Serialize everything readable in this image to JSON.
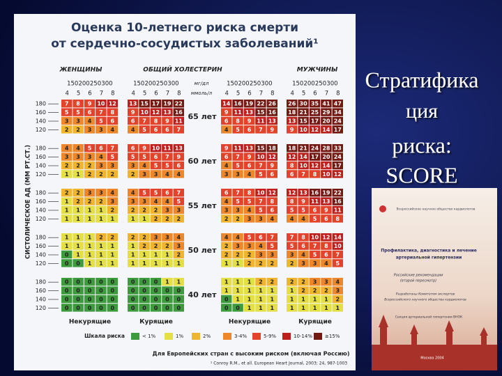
{
  "header": {
    "title_line1": "Оценка 10-летнего риска смерти",
    "title_line2": "от сердечно-сосудистых заболеваний¹"
  },
  "groups": {
    "women": "ЖЕНЩИНЫ",
    "cholesterol": "ОБЩИЙ ХОЛЕСТЕРИН",
    "men": "МУЖЧИНЫ"
  },
  "mgdl": [
    "150",
    "200",
    "250",
    "300"
  ],
  "mgdl_unit": "мг/дл",
  "mmol_unit": "ммоль/л",
  "chol": [
    "4",
    "5",
    "6",
    "7",
    "8"
  ],
  "bp": [
    "180",
    "160",
    "140",
    "120"
  ],
  "y_label": "СИСТОЛИЧЕСКОЕ АД (ММ РТ.СТ.)",
  "ages": [
    {
      "label": "65 лет",
      "panels": [
        [
          [
            7,
            8,
            9,
            10,
            12
          ],
          [
            5,
            5,
            6,
            7,
            8
          ],
          [
            3,
            3,
            4,
            5,
            6
          ],
          [
            2,
            2,
            3,
            3,
            4
          ]
        ],
        [
          [
            13,
            15,
            17,
            19,
            22
          ],
          [
            9,
            10,
            12,
            13,
            16
          ],
          [
            6,
            7,
            8,
            9,
            11
          ],
          [
            4,
            5,
            6,
            6,
            7
          ]
        ],
        [
          [
            14,
            16,
            19,
            22,
            26
          ],
          [
            9,
            11,
            13,
            15,
            16
          ],
          [
            6,
            8,
            9,
            11,
            13
          ],
          [
            4,
            5,
            6,
            7,
            9
          ]
        ],
        [
          [
            26,
            30,
            35,
            41,
            47
          ],
          [
            18,
            21,
            25,
            29,
            34
          ],
          [
            13,
            15,
            17,
            20,
            24
          ],
          [
            9,
            10,
            12,
            14,
            17
          ]
        ]
      ]
    },
    {
      "label": "60 лет",
      "panels": [
        [
          [
            4,
            4,
            5,
            6,
            7
          ],
          [
            3,
            3,
            3,
            4,
            5
          ],
          [
            2,
            2,
            2,
            3,
            3
          ],
          [
            1,
            1,
            2,
            2,
            2
          ]
        ],
        [
          [
            6,
            9,
            10,
            11,
            13
          ],
          [
            5,
            5,
            6,
            7,
            9
          ],
          [
            3,
            4,
            5,
            5,
            6
          ],
          [
            2,
            3,
            3,
            4,
            4
          ]
        ],
        [
          [
            9,
            11,
            13,
            15,
            18
          ],
          [
            6,
            7,
            9,
            10,
            12
          ],
          [
            4,
            5,
            6,
            7,
            9
          ],
          [
            3,
            3,
            4,
            5,
            6
          ]
        ],
        [
          [
            18,
            21,
            24,
            28,
            33
          ],
          [
            12,
            14,
            17,
            20,
            24
          ],
          [
            8,
            10,
            12,
            14,
            17
          ],
          [
            6,
            7,
            8,
            10,
            12
          ]
        ]
      ]
    },
    {
      "label": "55 лет",
      "panels": [
        [
          [
            2,
            2,
            3,
            3,
            4
          ],
          [
            1,
            2,
            2,
            2,
            3
          ],
          [
            1,
            1,
            1,
            1,
            2
          ],
          [
            1,
            1,
            1,
            1,
            1
          ]
        ],
        [
          [
            4,
            5,
            5,
            6,
            7
          ],
          [
            3,
            3,
            4,
            4,
            5
          ],
          [
            2,
            2,
            2,
            3,
            3
          ],
          [
            1,
            1,
            2,
            2,
            2
          ]
        ],
        [
          [
            6,
            7,
            8,
            10,
            12
          ],
          [
            4,
            5,
            5,
            7,
            8
          ],
          [
            3,
            3,
            4,
            5,
            6
          ],
          [
            2,
            2,
            3,
            3,
            4
          ]
        ],
        [
          [
            12,
            13,
            16,
            19,
            22
          ],
          [
            8,
            9,
            11,
            13,
            16
          ],
          [
            5,
            5,
            6,
            9,
            11
          ],
          [
            4,
            4,
            5,
            6,
            8
          ]
        ]
      ]
    },
    {
      "label": "50 лет",
      "panels": [
        [
          [
            1,
            1,
            1,
            2,
            2
          ],
          [
            1,
            1,
            1,
            1,
            1
          ],
          [
            0,
            1,
            1,
            1,
            1
          ],
          [
            0,
            0,
            1,
            1,
            1
          ]
        ],
        [
          [
            2,
            2,
            3,
            3,
            4
          ],
          [
            1,
            2,
            2,
            2,
            3
          ],
          [
            1,
            1,
            1,
            1,
            2
          ],
          [
            1,
            1,
            1,
            1,
            1
          ]
        ],
        [
          [
            4,
            4,
            5,
            6,
            7
          ],
          [
            2,
            3,
            3,
            4,
            5
          ],
          [
            2,
            2,
            2,
            3,
            3
          ],
          [
            1,
            1,
            2,
            2,
            2
          ]
        ],
        [
          [
            7,
            8,
            10,
            12,
            14
          ],
          [
            5,
            6,
            7,
            8,
            10
          ],
          [
            3,
            4,
            5,
            6,
            7
          ],
          [
            2,
            3,
            3,
            4,
            5
          ]
        ]
      ]
    },
    {
      "label": "40 лет",
      "panels": [
        [
          [
            0,
            0,
            0,
            0,
            0
          ],
          [
            0,
            0,
            0,
            0,
            0
          ],
          [
            0,
            0,
            0,
            0,
            0
          ],
          [
            0,
            0,
            0,
            0,
            0
          ]
        ],
        [
          [
            0,
            0,
            0,
            1,
            1
          ],
          [
            0,
            0,
            0,
            0,
            0
          ],
          [
            0,
            0,
            0,
            0,
            0
          ],
          [
            0,
            0,
            0,
            0,
            0
          ]
        ],
        [
          [
            1,
            1,
            1,
            2,
            2
          ],
          [
            1,
            1,
            1,
            1,
            1
          ],
          [
            0,
            1,
            1,
            1,
            1
          ],
          [
            0,
            0,
            1,
            1,
            1
          ]
        ],
        [
          [
            2,
            2,
            3,
            3,
            4
          ],
          [
            1,
            2,
            2,
            2,
            3
          ],
          [
            1,
            1,
            1,
            1,
            2
          ],
          [
            1,
            1,
            1,
            1,
            1
          ]
        ]
      ]
    }
  ],
  "bottom": [
    "Некурящие",
    "Курящие",
    "Некурящие",
    "Курящие"
  ],
  "legend": {
    "title": "Шкала риска",
    "items": [
      {
        "label": "< 1%",
        "color": "#3d9a3d"
      },
      {
        "label": "1%",
        "color": "#e3df45"
      },
      {
        "label": "2%",
        "color": "#f1b52d"
      },
      {
        "label": "3-4%",
        "color": "#ee862a"
      },
      {
        "label": "5-9%",
        "color": "#e2432a"
      },
      {
        "label": "10-14%",
        "color": "#bd1f1c"
      },
      {
        "label": "≥15%",
        "color": "#741912"
      }
    ]
  },
  "footer": "Для Европейских стран с высоким риском (включая Россию)",
  "reference": "¹ Conroy R.M., et all. European Heart Journal, 2003; 24, 987-1003",
  "slide_title": [
    "Стратифика",
    "ция",
    "риска:",
    "SCORE"
  ],
  "book": {
    "society": "Всероссийское научное общество кардиологов",
    "title": [
      "Профилактика, диагностика и лечение",
      "артериальной гипертензии"
    ],
    "subtitle": [
      "Российские рекомендации",
      "(второй пересмотр)"
    ],
    "authors": [
      "Разработаны Комитетом экспертов",
      "Всероссийского научного общества кардиологов"
    ],
    "section": "Секция артериальной гипертонии ВНОК",
    "city": "Москва 2004"
  }
}
